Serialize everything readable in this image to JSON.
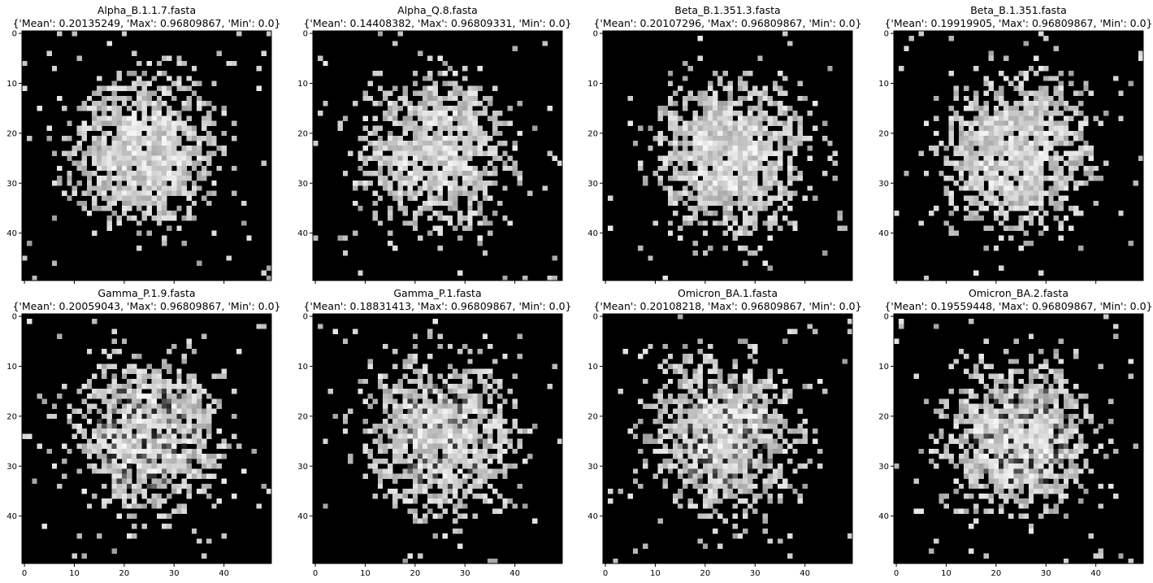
{
  "chart_data": [
    {
      "type": "heatmap",
      "title": "Alpha_B.1.1.7.fasta",
      "subtitle": "{'Mean': 0.20135249, 'Max': 0.96809867, 'Min': 0.0}",
      "grid_size": 50,
      "xlim": [
        0,
        49
      ],
      "ylim": [
        49,
        0
      ],
      "xticks": [
        0,
        10,
        20,
        30,
        40
      ],
      "yticks": [
        0,
        10,
        20,
        30,
        40
      ],
      "colormap": "gray",
      "stats": {
        "mean": 0.20135249,
        "max": 0.96809867,
        "min": 0.0
      }
    },
    {
      "type": "heatmap",
      "title": "Alpha_Q.8.fasta",
      "subtitle": "{'Mean': 0.14408382, 'Max': 0.96809331, 'Min': 0.0}",
      "grid_size": 50,
      "xlim": [
        0,
        49
      ],
      "ylim": [
        49,
        0
      ],
      "xticks": [
        0,
        10,
        20,
        30,
        40
      ],
      "yticks": [
        0,
        10,
        20,
        30,
        40
      ],
      "colormap": "gray",
      "stats": {
        "mean": 0.14408382,
        "max": 0.96809331,
        "min": 0.0
      }
    },
    {
      "type": "heatmap",
      "title": "Beta_B.1.351.3.fasta",
      "subtitle": "{'Mean': 0.20107296, 'Max': 0.96809867, 'Min': 0.0}",
      "grid_size": 50,
      "xlim": [
        0,
        49
      ],
      "ylim": [
        49,
        0
      ],
      "xticks": [
        0,
        10,
        20,
        30,
        40
      ],
      "yticks": [
        0,
        10,
        20,
        30,
        40
      ],
      "colormap": "gray",
      "stats": {
        "mean": 0.20107296,
        "max": 0.96809867,
        "min": 0.0
      }
    },
    {
      "type": "heatmap",
      "title": "Beta_B.1.351.fasta",
      "subtitle": "{'Mean': 0.19919905, 'Max': 0.96809867, 'Min': 0.0}",
      "grid_size": 50,
      "xlim": [
        0,
        49
      ],
      "ylim": [
        49,
        0
      ],
      "xticks": [
        0,
        10,
        20,
        30,
        40
      ],
      "yticks": [
        0,
        10,
        20,
        30,
        40
      ],
      "colormap": "gray",
      "stats": {
        "mean": 0.19919905,
        "max": 0.96809867,
        "min": 0.0
      }
    },
    {
      "type": "heatmap",
      "title": "Gamma_P.1.9.fasta",
      "subtitle": "{'Mean': 0.20059043, 'Max': 0.96809867, 'Min': 0.0}",
      "grid_size": 50,
      "xlim": [
        0,
        49
      ],
      "ylim": [
        49,
        0
      ],
      "xticks": [
        0,
        10,
        20,
        30,
        40
      ],
      "yticks": [
        0,
        10,
        20,
        30,
        40
      ],
      "colormap": "gray",
      "stats": {
        "mean": 0.20059043,
        "max": 0.96809867,
        "min": 0.0
      }
    },
    {
      "type": "heatmap",
      "title": "Gamma_P.1.fasta",
      "subtitle": "{'Mean': 0.18831413, 'Max': 0.96809867, 'Min': 0.0}",
      "grid_size": 50,
      "xlim": [
        0,
        49
      ],
      "ylim": [
        49,
        0
      ],
      "xticks": [
        0,
        10,
        20,
        30,
        40
      ],
      "yticks": [
        0,
        10,
        20,
        30,
        40
      ],
      "colormap": "gray",
      "stats": {
        "mean": 0.18831413,
        "max": 0.96809867,
        "min": 0.0
      }
    },
    {
      "type": "heatmap",
      "title": "Omicron_BA.1.fasta",
      "subtitle": "{'Mean': 0.20108218, 'Max': 0.96809867, 'Min': 0.0}",
      "grid_size": 50,
      "xlim": [
        0,
        49
      ],
      "ylim": [
        49,
        0
      ],
      "xticks": [
        0,
        10,
        20,
        30,
        40
      ],
      "yticks": [
        0,
        10,
        20,
        30,
        40
      ],
      "colormap": "gray",
      "stats": {
        "mean": 0.20108218,
        "max": 0.96809867,
        "min": 0.0
      }
    },
    {
      "type": "heatmap",
      "title": "Omicron_BA.2.fasta",
      "subtitle": "{'Mean': 0.19559448, 'Max': 0.96809867, 'Min': 0.0}",
      "grid_size": 50,
      "xlim": [
        0,
        49
      ],
      "ylim": [
        49,
        0
      ],
      "xticks": [
        0,
        10,
        20,
        30,
        40
      ],
      "yticks": [
        0,
        10,
        20,
        30,
        40
      ],
      "colormap": "gray",
      "stats": {
        "mean": 0.19559448,
        "max": 0.96809867,
        "min": 0.0
      }
    }
  ]
}
